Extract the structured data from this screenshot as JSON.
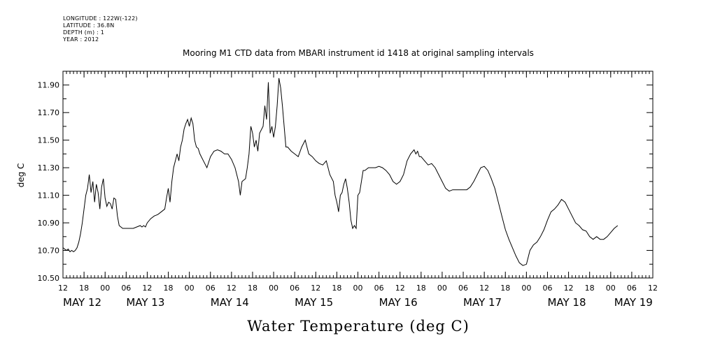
{
  "header": {
    "meta_lines": [
      "LONGITUDE : 122W(-122)",
      "LATITUDE : 36.8N",
      "DEPTH (m) : 1",
      "YEAR : 2012"
    ]
  },
  "chart_data": {
    "type": "line",
    "title": "Mooring M1 CTD data from MBARI instrument id 1418 at original sampling intervals",
    "xlabel": "Water Temperature (deg C)",
    "ylabel": "deg C",
    "ylim": [
      10.5,
      12.0
    ],
    "yticks": [
      10.5,
      10.7,
      10.9,
      11.1,
      11.3,
      11.5,
      11.7,
      11.9
    ],
    "ytick_labels": [
      "10.50",
      "10.70",
      "10.90",
      "11.10",
      "11.30",
      "11.50",
      "11.70",
      "11.90"
    ],
    "x_range_hours": [
      0,
      168
    ],
    "x_units": "hours since MAY 12 12:00",
    "hour_ticks": [
      {
        "h": 0,
        "label": "12"
      },
      {
        "h": 6,
        "label": "18"
      },
      {
        "h": 12,
        "label": "00"
      },
      {
        "h": 18,
        "label": "06"
      },
      {
        "h": 24,
        "label": "12"
      },
      {
        "h": 30,
        "label": "18"
      },
      {
        "h": 36,
        "label": "00"
      },
      {
        "h": 42,
        "label": "06"
      },
      {
        "h": 48,
        "label": "12"
      },
      {
        "h": 54,
        "label": "18"
      },
      {
        "h": 60,
        "label": "00"
      },
      {
        "h": 66,
        "label": "06"
      },
      {
        "h": 72,
        "label": "12"
      },
      {
        "h": 78,
        "label": "18"
      },
      {
        "h": 84,
        "label": "00"
      },
      {
        "h": 90,
        "label": "06"
      },
      {
        "h": 96,
        "label": "12"
      },
      {
        "h": 102,
        "label": "18"
      },
      {
        "h": 108,
        "label": "00"
      },
      {
        "h": 114,
        "label": "06"
      },
      {
        "h": 120,
        "label": "12"
      },
      {
        "h": 126,
        "label": "18"
      },
      {
        "h": 132,
        "label": "00"
      },
      {
        "h": 138,
        "label": "06"
      },
      {
        "h": 144,
        "label": "12"
      },
      {
        "h": 150,
        "label": "18"
      },
      {
        "h": 156,
        "label": "00"
      },
      {
        "h": 162,
        "label": "06"
      },
      {
        "h": 168,
        "label": "12"
      }
    ],
    "day_labels": [
      {
        "h": 0,
        "label": "MAY 12"
      },
      {
        "h": 18,
        "label": "MAY 13"
      },
      {
        "h": 42,
        "label": "MAY 14"
      },
      {
        "h": 66,
        "label": "MAY 15"
      },
      {
        "h": 90,
        "label": "MAY 16"
      },
      {
        "h": 114,
        "label": "MAY 17"
      },
      {
        "h": 138,
        "label": "MAY 18"
      },
      {
        "h": 157,
        "label": "MAY 19"
      }
    ],
    "grid": false,
    "series": [
      {
        "line_color": "#000000",
        "points": [
          [
            0,
            10.72
          ],
          [
            0.5,
            10.71
          ],
          [
            1,
            10.7
          ],
          [
            1.5,
            10.71
          ],
          [
            2,
            10.69
          ],
          [
            2.5,
            10.7
          ],
          [
            3,
            10.69
          ],
          [
            3.5,
            10.7
          ],
          [
            4,
            10.72
          ],
          [
            4.5,
            10.76
          ],
          [
            5,
            10.82
          ],
          [
            5.5,
            10.9
          ],
          [
            6,
            11.0
          ],
          [
            6.5,
            11.1
          ],
          [
            7,
            11.15
          ],
          [
            7.5,
            11.25
          ],
          [
            8,
            11.12
          ],
          [
            8.5,
            11.2
          ],
          [
            9,
            11.05
          ],
          [
            9.5,
            11.18
          ],
          [
            10,
            11.12
          ],
          [
            10.5,
            11.0
          ],
          [
            11,
            11.16
          ],
          [
            11.5,
            11.22
          ],
          [
            12,
            11.08
          ],
          [
            12.5,
            11.02
          ],
          [
            13,
            11.05
          ],
          [
            13.5,
            11.04
          ],
          [
            14,
            11.0
          ],
          [
            14.5,
            11.08
          ],
          [
            15,
            11.07
          ],
          [
            15.5,
            10.95
          ],
          [
            16,
            10.88
          ],
          [
            17,
            10.86
          ],
          [
            18,
            10.86
          ],
          [
            19,
            10.86
          ],
          [
            20,
            10.86
          ],
          [
            21,
            10.87
          ],
          [
            22,
            10.88
          ],
          [
            22.5,
            10.87
          ],
          [
            23,
            10.88
          ],
          [
            23.5,
            10.87
          ],
          [
            24,
            10.9
          ],
          [
            25,
            10.93
          ],
          [
            26,
            10.95
          ],
          [
            27,
            10.96
          ],
          [
            28,
            10.98
          ],
          [
            29,
            11.0
          ],
          [
            29.5,
            11.08
          ],
          [
            30,
            11.15
          ],
          [
            30.5,
            11.05
          ],
          [
            31,
            11.2
          ],
          [
            31.5,
            11.3
          ],
          [
            32,
            11.35
          ],
          [
            32.5,
            11.4
          ],
          [
            33,
            11.35
          ],
          [
            33.5,
            11.45
          ],
          [
            34,
            11.5
          ],
          [
            34.5,
            11.58
          ],
          [
            35,
            11.62
          ],
          [
            35.5,
            11.65
          ],
          [
            36,
            11.6
          ],
          [
            36.5,
            11.66
          ],
          [
            37,
            11.62
          ],
          [
            37.5,
            11.5
          ],
          [
            38,
            11.45
          ],
          [
            38.5,
            11.44
          ],
          [
            39,
            11.4
          ],
          [
            40,
            11.35
          ],
          [
            41,
            11.3
          ],
          [
            42,
            11.38
          ],
          [
            43,
            11.42
          ],
          [
            44,
            11.43
          ],
          [
            45,
            11.42
          ],
          [
            46,
            11.4
          ],
          [
            47,
            11.4
          ],
          [
            48,
            11.36
          ],
          [
            49,
            11.3
          ],
          [
            50,
            11.2
          ],
          [
            50.5,
            11.1
          ],
          [
            51,
            11.2
          ],
          [
            52,
            11.22
          ],
          [
            52.5,
            11.3
          ],
          [
            53,
            11.4
          ],
          [
            53.5,
            11.6
          ],
          [
            54,
            11.55
          ],
          [
            54.5,
            11.45
          ],
          [
            55,
            11.5
          ],
          [
            55.5,
            11.42
          ],
          [
            56,
            11.55
          ],
          [
            57,
            11.6
          ],
          [
            57.5,
            11.75
          ],
          [
            58,
            11.65
          ],
          [
            58.5,
            11.92
          ],
          [
            59,
            11.55
          ],
          [
            59.5,
            11.6
          ],
          [
            60,
            11.52
          ],
          [
            60.5,
            11.6
          ],
          [
            61,
            11.75
          ],
          [
            61.5,
            11.95
          ],
          [
            62,
            11.88
          ],
          [
            62.5,
            11.75
          ],
          [
            63,
            11.6
          ],
          [
            63.5,
            11.45
          ],
          [
            64,
            11.45
          ],
          [
            65,
            11.42
          ],
          [
            66,
            11.4
          ],
          [
            67,
            11.38
          ],
          [
            68,
            11.45
          ],
          [
            69,
            11.5
          ],
          [
            69.5,
            11.45
          ],
          [
            70,
            11.4
          ],
          [
            71,
            11.38
          ],
          [
            72,
            11.35
          ],
          [
            73,
            11.33
          ],
          [
            74,
            11.32
          ],
          [
            75,
            11.35
          ],
          [
            76,
            11.25
          ],
          [
            77,
            11.2
          ],
          [
            77.5,
            11.1
          ],
          [
            78,
            11.05
          ],
          [
            78.5,
            10.98
          ],
          [
            79,
            11.1
          ],
          [
            79.5,
            11.12
          ],
          [
            80,
            11.18
          ],
          [
            80.5,
            11.22
          ],
          [
            81,
            11.15
          ],
          [
            81.5,
            11.05
          ],
          [
            82,
            10.92
          ],
          [
            82.5,
            10.86
          ],
          [
            83,
            10.88
          ],
          [
            83.5,
            10.86
          ],
          [
            84,
            11.1
          ],
          [
            84.5,
            11.12
          ],
          [
            85,
            11.2
          ],
          [
            85.5,
            11.28
          ],
          [
            86,
            11.28
          ],
          [
            87,
            11.3
          ],
          [
            88,
            11.3
          ],
          [
            89,
            11.3
          ],
          [
            90,
            11.31
          ],
          [
            91,
            11.3
          ],
          [
            92,
            11.28
          ],
          [
            93,
            11.25
          ],
          [
            94,
            11.2
          ],
          [
            95,
            11.18
          ],
          [
            96,
            11.2
          ],
          [
            97,
            11.25
          ],
          [
            98,
            11.35
          ],
          [
            99,
            11.4
          ],
          [
            100,
            11.43
          ],
          [
            100.5,
            11.4
          ],
          [
            101,
            11.42
          ],
          [
            101.5,
            11.38
          ],
          [
            102,
            11.38
          ],
          [
            103,
            11.35
          ],
          [
            104,
            11.32
          ],
          [
            105,
            11.33
          ],
          [
            106,
            11.3
          ],
          [
            107,
            11.25
          ],
          [
            108,
            11.2
          ],
          [
            109,
            11.15
          ],
          [
            110,
            11.13
          ],
          [
            111,
            11.14
          ],
          [
            112,
            11.14
          ],
          [
            113,
            11.14
          ],
          [
            114,
            11.14
          ],
          [
            115,
            11.14
          ],
          [
            116,
            11.16
          ],
          [
            117,
            11.2
          ],
          [
            118,
            11.25
          ],
          [
            119,
            11.3
          ],
          [
            120,
            11.31
          ],
          [
            121,
            11.28
          ],
          [
            122,
            11.22
          ],
          [
            123,
            11.15
          ],
          [
            124,
            11.05
          ],
          [
            125,
            10.95
          ],
          [
            126,
            10.85
          ],
          [
            127,
            10.78
          ],
          [
            128,
            10.72
          ],
          [
            129,
            10.66
          ],
          [
            130,
            10.61
          ],
          [
            131,
            10.59
          ],
          [
            132,
            10.6
          ],
          [
            133,
            10.7
          ],
          [
            134,
            10.74
          ],
          [
            135,
            10.76
          ],
          [
            136,
            10.8
          ],
          [
            137,
            10.85
          ],
          [
            138,
            10.92
          ],
          [
            139,
            10.98
          ],
          [
            140,
            11.0
          ],
          [
            141,
            11.03
          ],
          [
            142,
            11.07
          ],
          [
            143,
            11.05
          ],
          [
            144,
            11.0
          ],
          [
            145,
            10.95
          ],
          [
            146,
            10.9
          ],
          [
            147,
            10.88
          ],
          [
            148,
            10.85
          ],
          [
            149,
            10.84
          ],
          [
            150,
            10.8
          ],
          [
            151,
            10.78
          ],
          [
            152,
            10.8
          ],
          [
            153,
            10.78
          ],
          [
            154,
            10.78
          ],
          [
            155,
            10.8
          ],
          [
            156,
            10.83
          ],
          [
            157,
            10.86
          ],
          [
            158,
            10.88
          ]
        ]
      }
    ]
  }
}
